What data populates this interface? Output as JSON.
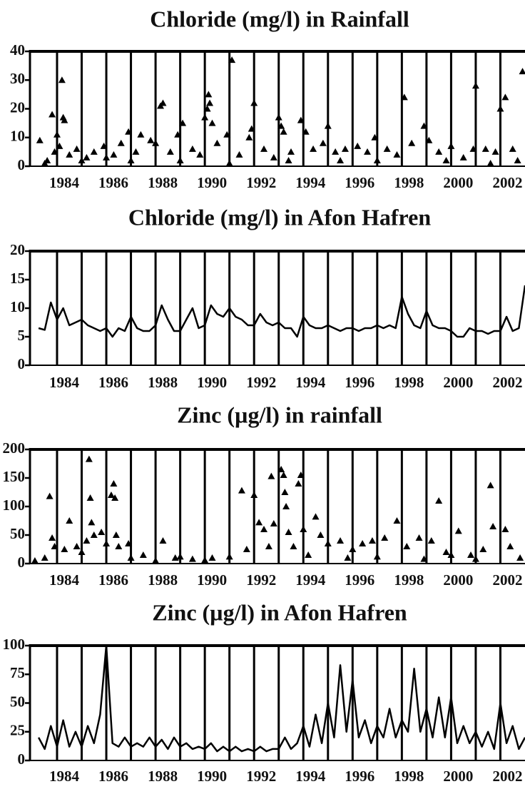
{
  "chart_data": [
    {
      "type": "scatter",
      "title": "Chloride (mg/l) in Rainfall",
      "marker": "triangle",
      "color": "#000000",
      "xlim": [
        1982.9,
        2003.0
      ],
      "xticks": [
        1984,
        1986,
        1988,
        1990,
        1992,
        1994,
        1996,
        1998,
        2000,
        2002
      ],
      "xminor": [
        1985,
        1987,
        1989,
        1991,
        1993,
        1995,
        1997,
        1999,
        2001
      ],
      "ylim": [
        0,
        40
      ],
      "yticks": [
        0,
        10,
        20,
        30,
        40
      ],
      "x": [
        1983.3,
        1983.5,
        1983.6,
        1983.8,
        1983.9,
        1984.0,
        1984.1,
        1984.2,
        1984.25,
        1984.3,
        1984.5,
        1984.8,
        1985.0,
        1985.2,
        1985.5,
        1985.9,
        1986.0,
        1986.3,
        1986.6,
        1986.9,
        1987.0,
        1987.2,
        1987.4,
        1987.8,
        1988.0,
        1988.2,
        1988.3,
        1988.6,
        1988.9,
        1989.0,
        1989.1,
        1989.5,
        1989.8,
        1990.0,
        1990.1,
        1990.15,
        1990.2,
        1990.3,
        1990.5,
        1990.9,
        1991.0,
        1991.1,
        1991.4,
        1991.8,
        1991.9,
        1992.0,
        1992.4,
        1992.8,
        1993.0,
        1993.1,
        1993.2,
        1993.4,
        1993.5,
        1993.9,
        1994.1,
        1994.4,
        1994.8,
        1995.0,
        1995.3,
        1995.5,
        1995.7,
        1996.2,
        1996.6,
        1996.9,
        1997.0,
        1997.4,
        1997.8,
        1998.1,
        1998.4,
        1998.9,
        1999.1,
        1999.5,
        1999.8,
        2000.0,
        2000.5,
        2000.9,
        2001.0,
        2001.4,
        2001.6,
        2001.8,
        2002.0,
        2002.2,
        2002.5,
        2002.7,
        2002.9
      ],
      "values": [
        9,
        1,
        2,
        18,
        5,
        11,
        7,
        30,
        17,
        16,
        4,
        6,
        2,
        3,
        5,
        7,
        3,
        4,
        8,
        12,
        2,
        5,
        11,
        9,
        8,
        21,
        22,
        5,
        11,
        2,
        15,
        6,
        4,
        17,
        20,
        25,
        22,
        15,
        8,
        11,
        1,
        37,
        4,
        10,
        13,
        22,
        6,
        3,
        17,
        14,
        12,
        2,
        5,
        16,
        12,
        6,
        8,
        14,
        5,
        2,
        6,
        7,
        5,
        10,
        2,
        6,
        4,
        24,
        8,
        14,
        9,
        5,
        2,
        7,
        3,
        6,
        28,
        6,
        1,
        5,
        20,
        24,
        6,
        2,
        33
      ]
    },
    {
      "type": "line",
      "title": "Chloride (mg/l) in Afon Hafren",
      "color": "#000000",
      "xlim": [
        1982.9,
        2003.0
      ],
      "xticks": [
        1984,
        1986,
        1988,
        1990,
        1992,
        1994,
        1996,
        1998,
        2000,
        2002
      ],
      "xminor": [
        1985,
        1987,
        1989,
        1991,
        1993,
        1995,
        1997,
        1999,
        2001
      ],
      "ylim": [
        0,
        20
      ],
      "yticks": [
        0,
        5,
        10,
        15,
        20
      ],
      "x": [
        1983.25,
        1983.5,
        1983.75,
        1984.0,
        1984.25,
        1984.5,
        1984.75,
        1985.0,
        1985.25,
        1985.5,
        1985.75,
        1986.0,
        1986.25,
        1986.5,
        1986.75,
        1987.0,
        1987.25,
        1987.5,
        1987.75,
        1988.0,
        1988.25,
        1988.5,
        1988.75,
        1989.0,
        1989.25,
        1989.5,
        1989.75,
        1990.0,
        1990.25,
        1990.5,
        1990.75,
        1991.0,
        1991.25,
        1991.5,
        1991.75,
        1992.0,
        1992.25,
        1992.5,
        1992.75,
        1993.0,
        1993.25,
        1993.5,
        1993.75,
        1994.0,
        1994.25,
        1994.5,
        1994.75,
        1995.0,
        1995.25,
        1995.5,
        1995.75,
        1996.0,
        1996.25,
        1996.5,
        1996.75,
        1997.0,
        1997.25,
        1997.5,
        1997.75,
        1998.0,
        1998.25,
        1998.5,
        1998.75,
        1999.0,
        1999.25,
        1999.5,
        1999.75,
        2000.0,
        2000.25,
        2000.5,
        2000.75,
        2001.0,
        2001.25,
        2001.5,
        2001.75,
        2002.0,
        2002.25,
        2002.5,
        2002.75,
        2003.0
      ],
      "values": [
        6.5,
        6.2,
        11,
        8,
        10,
        7,
        7.5,
        8,
        7,
        6.5,
        6,
        6.5,
        5,
        6.5,
        6,
        8.5,
        6.5,
        6,
        6,
        7,
        10.5,
        8,
        6,
        6,
        8,
        10,
        6.5,
        7,
        10.5,
        9,
        8.5,
        10,
        8.5,
        8,
        7,
        7,
        9,
        7.5,
        7,
        7.5,
        6.5,
        6.5,
        5,
        8.5,
        7,
        6.5,
        6.5,
        7,
        6.5,
        6,
        6.5,
        6.5,
        6,
        6.5,
        6.5,
        7,
        6.5,
        7,
        6.5,
        12,
        9,
        7,
        6.5,
        9.5,
        7,
        6.5,
        6.5,
        6,
        5,
        5,
        6.5,
        6,
        6,
        5.5,
        6,
        6,
        8.5,
        6,
        6.5,
        14
      ]
    },
    {
      "type": "scatter",
      "title": "Zinc (µg/l) in rainfall",
      "marker": "triangle",
      "color": "#000000",
      "xlim": [
        1982.9,
        2003.0
      ],
      "xticks": [
        1984,
        1986,
        1988,
        1990,
        1992,
        1994,
        1996,
        1998,
        2000,
        2002
      ],
      "xminor": [
        1985,
        1987,
        1989,
        1991,
        1993,
        1995,
        1997,
        1999,
        2001
      ],
      "ylim": [
        0,
        200
      ],
      "yticks": [
        0,
        50,
        100,
        150,
        200
      ],
      "x": [
        1983.1,
        1983.5,
        1983.7,
        1983.8,
        1983.9,
        1984.3,
        1984.5,
        1984.8,
        1985.0,
        1985.2,
        1985.3,
        1985.35,
        1985.4,
        1985.5,
        1985.8,
        1986.0,
        1986.2,
        1986.3,
        1986.35,
        1986.4,
        1986.5,
        1986.9,
        1987.0,
        1987.5,
        1988.0,
        1988.3,
        1988.8,
        1989.0,
        1989.5,
        1990.0,
        1990.3,
        1991.0,
        1991.5,
        1991.7,
        1992.0,
        1992.2,
        1992.4,
        1992.6,
        1992.7,
        1992.8,
        1993.1,
        1993.2,
        1993.25,
        1993.3,
        1993.4,
        1993.6,
        1993.8,
        1993.9,
        1994.0,
        1994.2,
        1994.5,
        1994.7,
        1995.0,
        1995.5,
        1995.8,
        1996.0,
        1996.4,
        1996.8,
        1997.0,
        1997.3,
        1997.8,
        1998.2,
        1998.7,
        1998.9,
        1999.2,
        1999.5,
        1999.8,
        2000.0,
        2000.3,
        2000.8,
        2001.0,
        2001.3,
        2001.6,
        2001.7,
        2002.2,
        2002.4,
        2002.8
      ],
      "values": [
        5,
        10,
        118,
        45,
        30,
        25,
        75,
        30,
        20,
        40,
        183,
        115,
        72,
        50,
        55,
        35,
        120,
        140,
        115,
        50,
        30,
        35,
        10,
        15,
        5,
        40,
        10,
        12,
        8,
        6,
        10,
        12,
        128,
        25,
        120,
        72,
        60,
        30,
        153,
        70,
        165,
        155,
        125,
        100,
        55,
        30,
        140,
        155,
        60,
        15,
        82,
        50,
        35,
        40,
        10,
        25,
        35,
        40,
        12,
        45,
        75,
        30,
        45,
        8,
        40,
        110,
        20,
        15,
        57,
        15,
        8,
        25,
        137,
        65,
        60,
        30,
        10
      ]
    },
    {
      "type": "line",
      "title": "Zinc (µg/l) in Afon Hafren",
      "color": "#000000",
      "xlim": [
        1982.9,
        2003.0
      ],
      "xticks": [
        1984,
        1986,
        1988,
        1990,
        1992,
        1994,
        1996,
        1998,
        2000,
        2002
      ],
      "xminor": [
        1985,
        1987,
        1989,
        1991,
        1993,
        1995,
        1997,
        1999,
        2001
      ],
      "ylim": [
        0,
        100
      ],
      "yticks": [
        0,
        25,
        50,
        75,
        100
      ],
      "x": [
        1983.25,
        1983.5,
        1983.75,
        1984.0,
        1984.25,
        1984.5,
        1984.75,
        1985.0,
        1985.25,
        1985.5,
        1985.75,
        1986.0,
        1986.25,
        1986.5,
        1986.75,
        1987.0,
        1987.25,
        1987.5,
        1987.75,
        1988.0,
        1988.25,
        1988.5,
        1988.75,
        1989.0,
        1989.25,
        1989.5,
        1989.75,
        1990.0,
        1990.25,
        1990.5,
        1990.75,
        1991.0,
        1991.25,
        1991.5,
        1991.75,
        1992.0,
        1992.25,
        1992.5,
        1992.75,
        1993.0,
        1993.25,
        1993.5,
        1993.75,
        1994.0,
        1994.25,
        1994.5,
        1994.75,
        1995.0,
        1995.25,
        1995.5,
        1995.75,
        1996.0,
        1996.25,
        1996.5,
        1996.75,
        1997.0,
        1997.25,
        1997.5,
        1997.75,
        1998.0,
        1998.25,
        1998.5,
        1998.75,
        1999.0,
        1999.25,
        1999.5,
        1999.75,
        2000.0,
        2000.25,
        2000.5,
        2000.75,
        2001.0,
        2001.25,
        2001.5,
        2001.75,
        2002.0,
        2002.25,
        2002.5,
        2002.75,
        2003.0
      ],
      "values": [
        20,
        10,
        30,
        12,
        35,
        12,
        25,
        12,
        30,
        15,
        40,
        100,
        15,
        12,
        20,
        12,
        15,
        12,
        20,
        12,
        18,
        10,
        20,
        12,
        15,
        10,
        12,
        10,
        15,
        8,
        12,
        8,
        12,
        8,
        10,
        8,
        12,
        8,
        10,
        10,
        20,
        10,
        15,
        30,
        12,
        40,
        15,
        50,
        20,
        83,
        25,
        70,
        20,
        35,
        15,
        30,
        20,
        45,
        20,
        35,
        25,
        80,
        25,
        45,
        20,
        55,
        20,
        55,
        15,
        30,
        15,
        25,
        12,
        25,
        10,
        50,
        15,
        30,
        10,
        20
      ]
    }
  ]
}
